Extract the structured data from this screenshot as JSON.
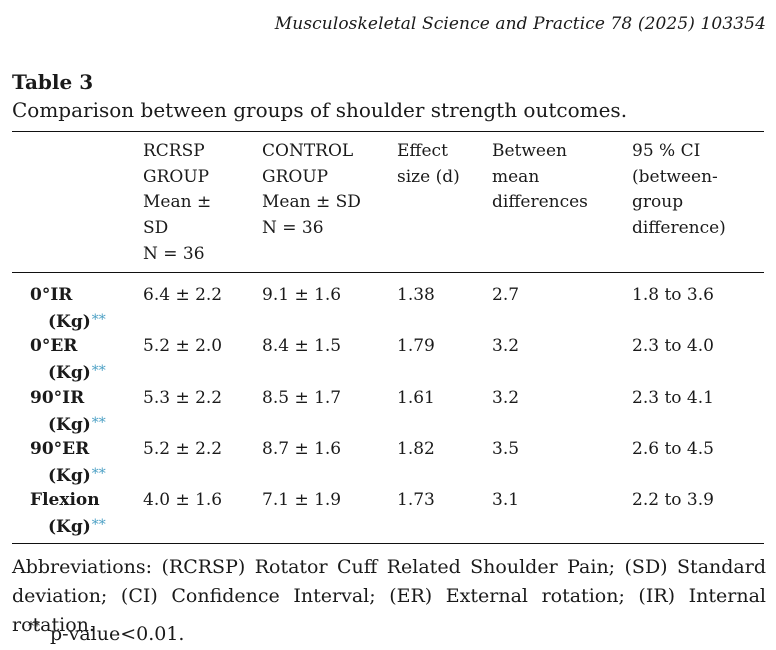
{
  "journal_ref": "Musculoskeletal Science and Practice 78 (2025) 103354",
  "table": {
    "label": "Table 3",
    "caption": "Comparison between groups of shoulder strength outcomes.",
    "headers": [
      {
        "lines": [
          "RCRSP",
          "GROUP",
          "Mean ±",
          "SD",
          "N = 36"
        ]
      },
      {
        "lines": [
          "CONTROL",
          "GROUP",
          "Mean ± SD",
          "N = 36"
        ]
      },
      {
        "lines": [
          "Effect",
          "size (d)"
        ]
      },
      {
        "lines": [
          "Between",
          "mean",
          "differences"
        ]
      },
      {
        "lines": [
          "95 % CI",
          "(between-",
          "group",
          "difference)"
        ]
      }
    ],
    "rows": [
      {
        "name_line1": "0°IR",
        "name_line2": "(Kg)",
        "marker": "**",
        "rcrsp": "6.4 ± 2.2",
        "control": "9.1 ± 1.6",
        "effect": "1.38",
        "diff": "2.7",
        "ci": "1.8 to 3.6"
      },
      {
        "name_line1": "0°ER",
        "name_line2": "(Kg)",
        "marker": "**",
        "rcrsp": "5.2 ± 2.0",
        "control": "8.4 ± 1.5",
        "effect": "1.79",
        "diff": "3.2",
        "ci": "2.3 to 4.0"
      },
      {
        "name_line1": "90°IR",
        "name_line2": "(Kg)",
        "marker": "**",
        "rcrsp": "5.3 ± 2.2",
        "control": "8.5 ± 1.7",
        "effect": "1.61",
        "diff": "3.2",
        "ci": "2.3 to 4.1"
      },
      {
        "name_line1": "90°ER",
        "name_line2": "(Kg)",
        "marker": "**",
        "rcrsp": "5.2 ± 2.2",
        "control": "8.7 ± 1.6",
        "effect": "1.82",
        "diff": "3.5",
        "ci": "2.6 to 4.5"
      },
      {
        "name_line1": "Flexion",
        "name_line2": "(Kg)",
        "marker": "**",
        "rcrsp": "4.0 ± 1.6",
        "control": "7.1 ± 1.9",
        "effect": "1.73",
        "diff": "3.1",
        "ci": "2.2 to 3.9"
      }
    ]
  },
  "footnote": {
    "abbreviations": "Abbreviations: (RCRSP) Rotator Cuff Related Shoulder Pain; (SD) Standard deviation; (CI) Confidence Interval; (ER) External rotation; (IR) Internal rotation.",
    "p_marker": "**",
    "p_text": "p-value<0.01."
  },
  "colors": {
    "marker": "#4a9fc4",
    "text": "#1a1a1a"
  }
}
